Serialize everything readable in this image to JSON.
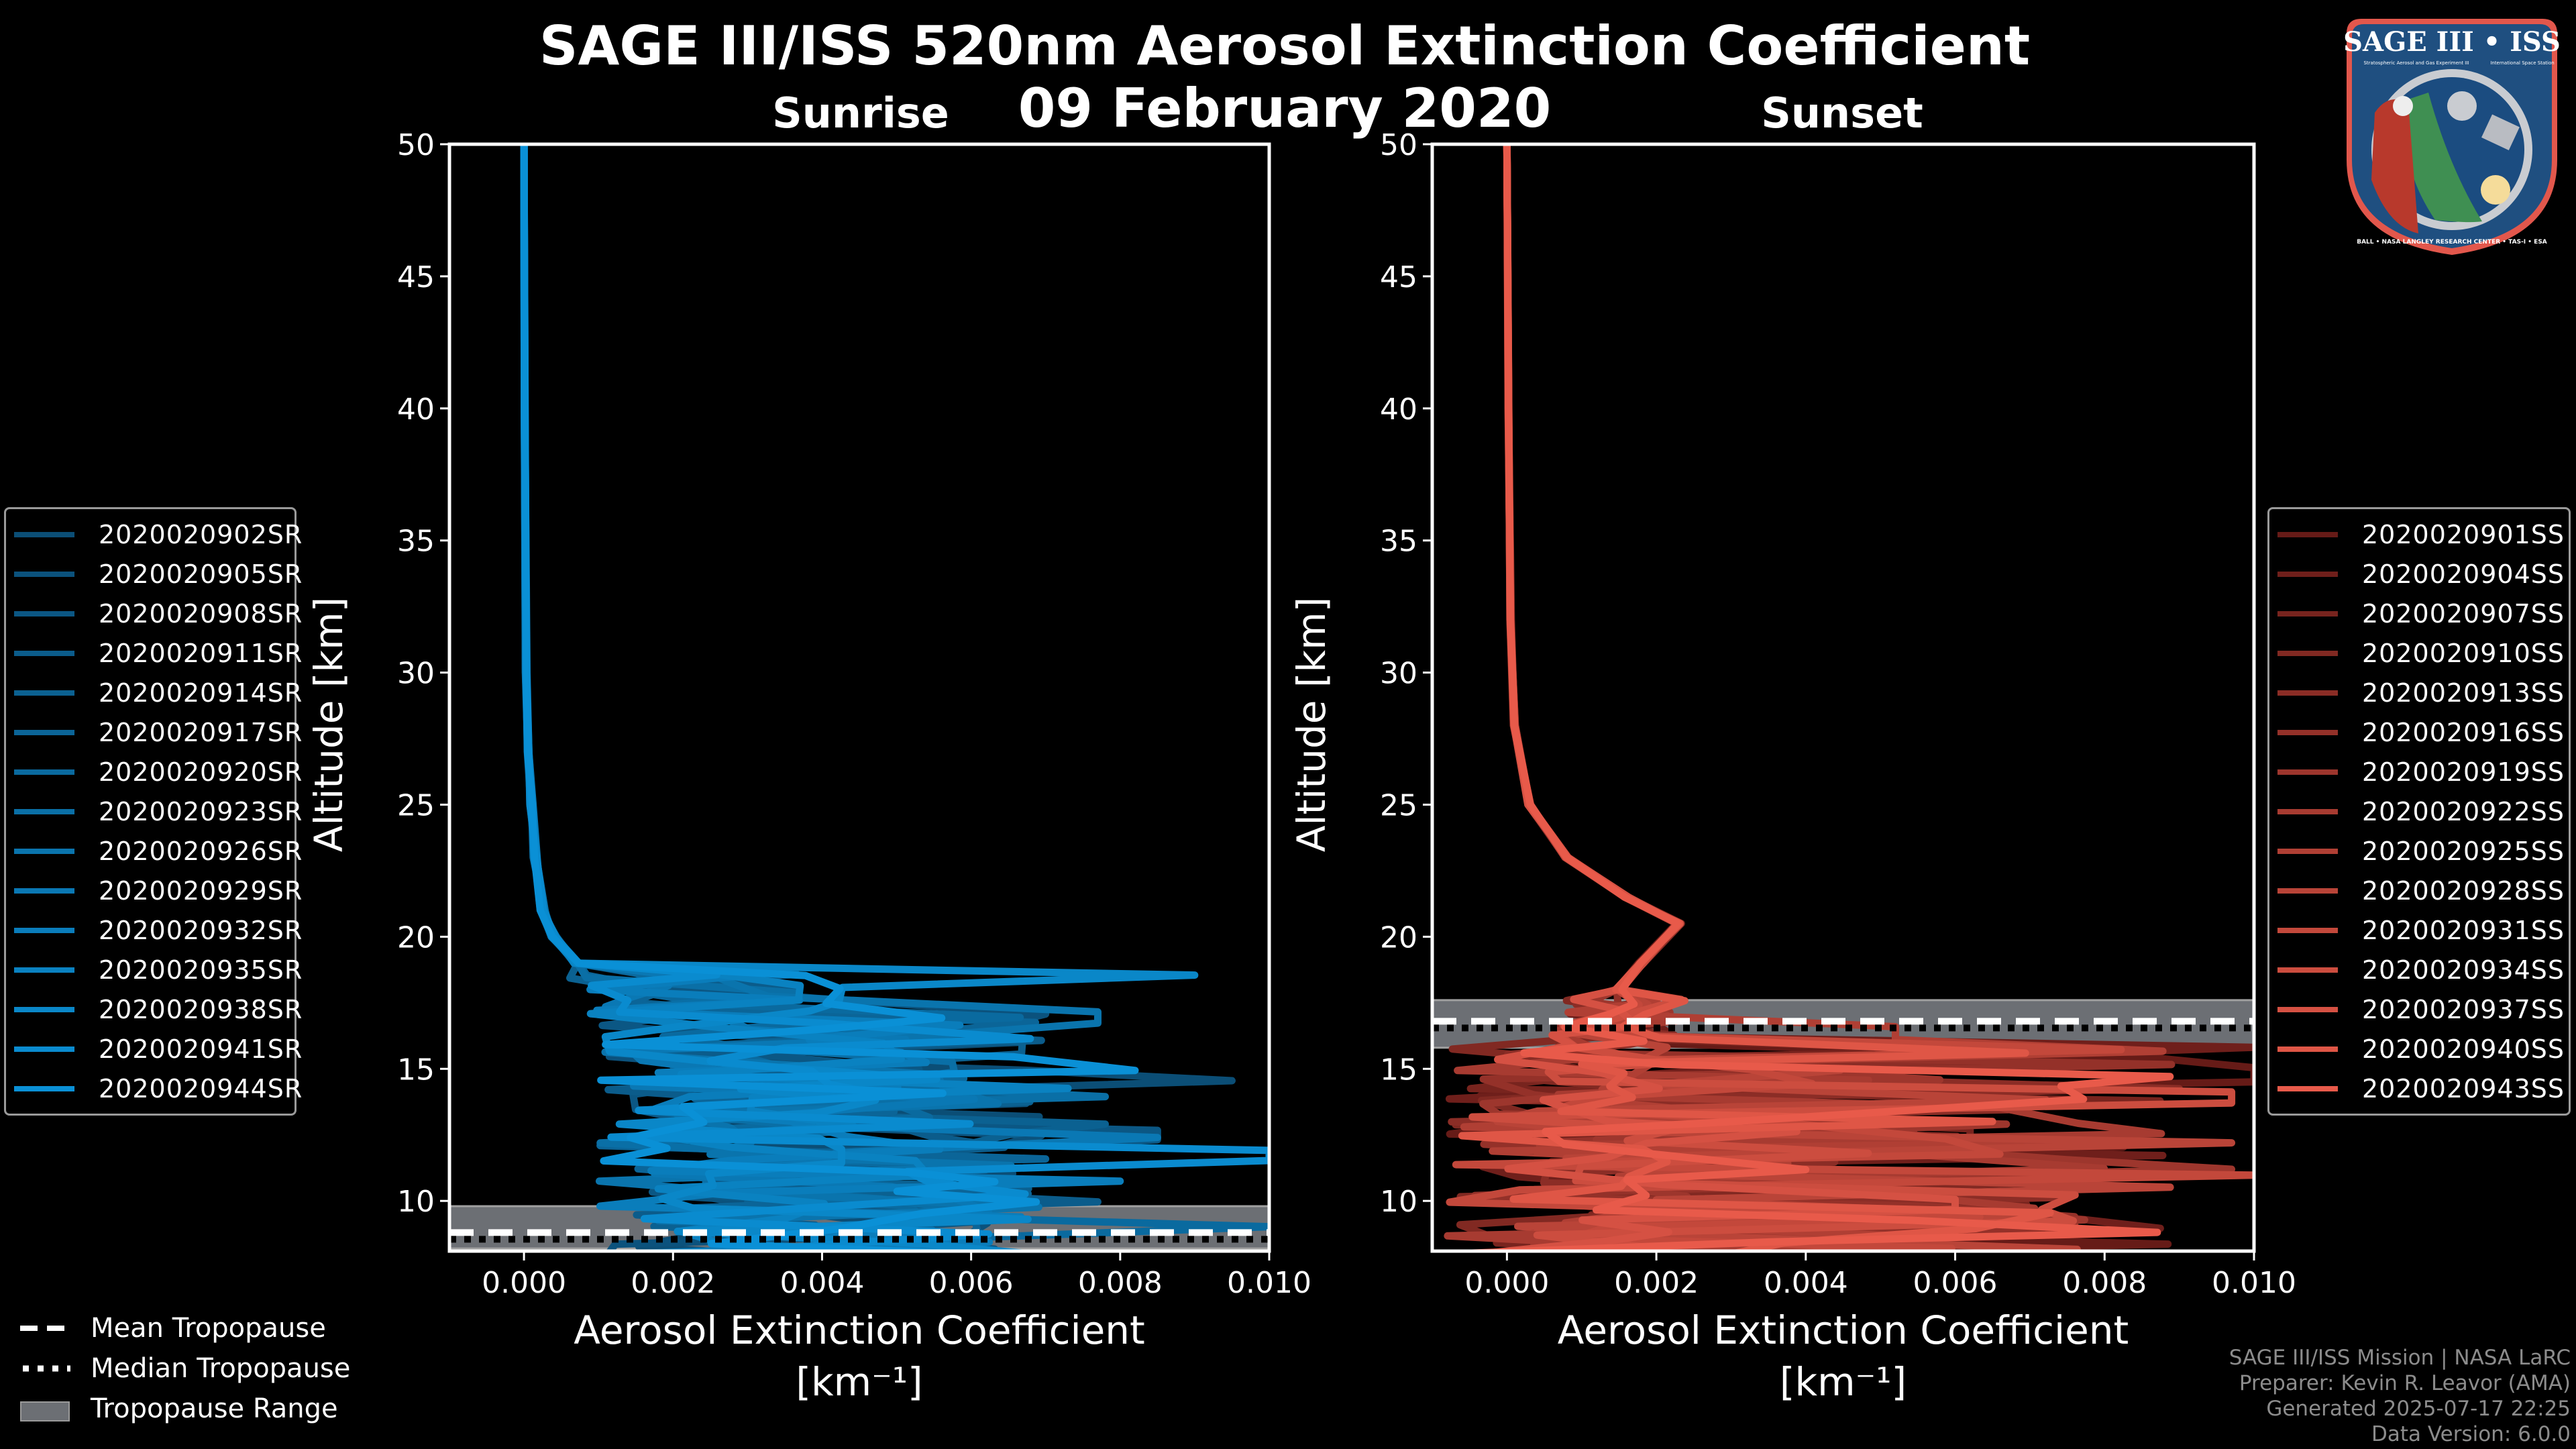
{
  "title": "SAGE III/ISS 520nm Aerosol Extinction Coefficient",
  "date": "09 February 2020",
  "logo": {
    "title": "SAGE III • ISS",
    "subtitle_left": "Stratospheric Aerosol and Gas Experiment III",
    "subtitle_right": "International Space Station",
    "ring_text": "BALL • NASA LANGLEY RESEARCH CENTER • TAS-I • ESA"
  },
  "tropopause_legend": [
    {
      "label": "Mean Tropopause",
      "style": "dashed"
    },
    {
      "label": "Median Tropopause",
      "style": "dotted"
    },
    {
      "label": "Tropopause Range",
      "style": "band"
    }
  ],
  "credits": [
    "SAGE III/ISS Mission | NASA LaRC",
    "Preparer: Kevin R. Leavor (AMA)",
    "Generated 2025-07-17 22:25",
    "Data Version: 6.0.0"
  ],
  "colors": {
    "sunrise_dark": "#0b3d5e",
    "sunrise_light": "#0a90d6",
    "sunset_dark": "#3a0606",
    "sunset_light": "#e85a4a",
    "tropo_band": "#6c6f74",
    "background": "#000000"
  },
  "chart_data": [
    {
      "type": "line",
      "title": "Sunrise",
      "xlabel": "Aerosol Extinction Coefficient",
      "xlabel_units": "[km⁻¹]",
      "ylabel": "Altitude [km]",
      "xlim": [
        -0.001,
        0.01
      ],
      "ylim": [
        8.1,
        50
      ],
      "xticks": [
        "0.000",
        "0.002",
        "0.004",
        "0.006",
        "0.008",
        "0.010"
      ],
      "xtick_values": [
        0.0,
        0.002,
        0.004,
        0.006,
        0.008,
        0.01
      ],
      "yticks": [
        "10",
        "15",
        "20",
        "25",
        "30",
        "35",
        "40",
        "45",
        "50"
      ],
      "ytick_values": [
        10,
        15,
        20,
        25,
        30,
        35,
        40,
        45,
        50
      ],
      "legend_position": "left-outside",
      "tropopause": {
        "mean": 8.8,
        "median": 8.75,
        "range": [
          8.2,
          9.8
        ]
      },
      "series": [
        {
          "name": "2020020902SR",
          "peak_alt": 14.5,
          "peak_val": 0.0095
        },
        {
          "name": "2020020905SR",
          "peak_alt": 16.8,
          "peak_val": 0.007
        },
        {
          "name": "2020020908SR",
          "peak_alt": 12.5,
          "peak_val": 0.0085
        },
        {
          "name": "2020020911SR",
          "peak_alt": 10.0,
          "peak_val": 0.0077
        },
        {
          "name": "2020020914SR",
          "peak_alt": 13.0,
          "peak_val": 0.0078
        },
        {
          "name": "2020020917SR",
          "peak_alt": 11.6,
          "peak_val": 0.007
        },
        {
          "name": "2020020920SR",
          "peak_alt": 9.0,
          "peak_val": 0.01
        },
        {
          "name": "2020020923SR",
          "peak_alt": 13.8,
          "peak_val": 0.0078
        },
        {
          "name": "2020020926SR",
          "peak_alt": 17.0,
          "peak_val": 0.0077
        },
        {
          "name": "2020020929SR",
          "peak_alt": 12.3,
          "peak_val": 0.0085
        },
        {
          "name": "2020020932SR",
          "peak_alt": 10.6,
          "peak_val": 0.008
        },
        {
          "name": "2020020935SR",
          "peak_alt": 14.4,
          "peak_val": 0.0073
        },
        {
          "name": "2020020938SR",
          "peak_alt": 18.5,
          "peak_val": 0.009
        },
        {
          "name": "2020020941SR",
          "peak_alt": 11.8,
          "peak_val": 0.01
        },
        {
          "name": "2020020944SR",
          "peak_alt": 15.0,
          "peak_val": 0.0082
        }
      ],
      "background_profile": {
        "altitude": [
          50,
          40,
          30,
          27,
          25,
          23,
          21,
          20,
          19
        ],
        "value": [
          0.0,
          1e-05,
          3e-05,
          6e-05,
          0.0001,
          0.00015,
          0.00025,
          0.0004,
          0.0007
        ]
      }
    },
    {
      "type": "line",
      "title": "Sunset",
      "xlabel": "Aerosol Extinction Coefficient",
      "xlabel_units": "[km⁻¹]",
      "ylabel": "Altitude [km]",
      "xlim": [
        -0.001,
        0.01
      ],
      "ylim": [
        8.1,
        50
      ],
      "xticks": [
        "0.000",
        "0.002",
        "0.004",
        "0.006",
        "0.008",
        "0.010"
      ],
      "xtick_values": [
        0.0,
        0.002,
        0.004,
        0.006,
        0.008,
        0.01
      ],
      "yticks": [
        "10",
        "15",
        "20",
        "25",
        "30",
        "35",
        "40",
        "45",
        "50"
      ],
      "ytick_values": [
        10,
        15,
        20,
        25,
        30,
        35,
        40,
        45,
        50
      ],
      "legend_position": "right-outside",
      "tropopause": {
        "mean": 16.8,
        "median": 16.75,
        "range": [
          15.8,
          17.6
        ]
      },
      "series": [
        {
          "name": "2020020901SS",
          "peak_alt": 14.8,
          "peak_val": 0.01
        },
        {
          "name": "2020020904SS",
          "peak_alt": 15.9,
          "peak_val": 0.01
        },
        {
          "name": "2020020907SS",
          "peak_alt": 12.5,
          "peak_val": 0.0062
        },
        {
          "name": "2020020910SS",
          "peak_alt": 10.5,
          "peak_val": 0.0073
        },
        {
          "name": "2020020913SS",
          "peak_alt": 14.2,
          "peak_val": 0.009
        },
        {
          "name": "2020020916SS",
          "peak_alt": 9.2,
          "peak_val": 0.0076
        },
        {
          "name": "2020020919SS",
          "peak_alt": 11.0,
          "peak_val": 0.0097
        },
        {
          "name": "2020020922SS",
          "peak_alt": 13.4,
          "peak_val": 0.0066
        },
        {
          "name": "2020020925SS",
          "peak_alt": 16.3,
          "peak_val": 0.0052
        },
        {
          "name": "2020020928SS",
          "peak_alt": 12.0,
          "peak_val": 0.0097
        },
        {
          "name": "2020020931SS",
          "peak_alt": 10.8,
          "peak_val": 0.01
        },
        {
          "name": "2020020934SS",
          "peak_alt": 14.0,
          "peak_val": 0.0097
        },
        {
          "name": "2020020937SS",
          "peak_alt": 9.8,
          "peak_val": 0.006
        },
        {
          "name": "2020020940SS",
          "peak_alt": 13.0,
          "peak_val": 0.0065
        },
        {
          "name": "2020020943SS",
          "peak_alt": 11.2,
          "peak_val": 0.004
        }
      ],
      "background_profile": {
        "altitude": [
          50,
          40,
          32,
          28,
          25,
          23,
          21.5,
          20.5,
          19,
          18
        ],
        "value": [
          0.0,
          2e-05,
          5e-05,
          0.0001,
          0.0003,
          0.0008,
          0.0016,
          0.0023,
          0.0018,
          0.0015
        ]
      }
    }
  ]
}
